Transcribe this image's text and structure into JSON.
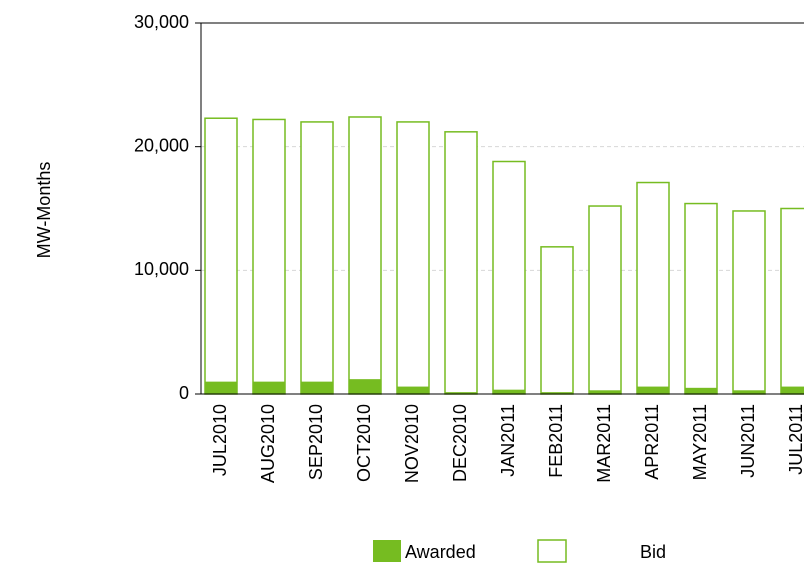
{
  "chart_data": {
    "type": "bar",
    "y_label": "MW-Months",
    "categories": [
      "JUL2010",
      "AUG2010",
      "SEP2010",
      "OCT2010",
      "NOV2010",
      "DEC2010",
      "JAN2011",
      "FEB2011",
      "MAR2011",
      "APR2011",
      "MAY2011",
      "JUN2011",
      "JUL2011"
    ],
    "series": [
      {
        "name": "Awarded",
        "color": "#76bc21",
        "values": [
          1000,
          1000,
          1000,
          1200,
          600,
          150,
          350,
          150,
          300,
          600,
          500,
          300,
          600
        ]
      },
      {
        "name": "Bid",
        "color": "#76bc21",
        "values": [
          22300,
          22200,
          22000,
          22400,
          22000,
          21200,
          18800,
          11900,
          15200,
          17100,
          15400,
          14800,
          15000
        ]
      }
    ],
    "ylim": [
      0,
      30000
    ],
    "yticks": [
      0,
      {
        "value": 10000,
        "label": "10,000"
      },
      {
        "value": 20000,
        "label": "20,000"
      },
      {
        "value": 30000,
        "label": "30,000"
      }
    ],
    "grid": true
  }
}
